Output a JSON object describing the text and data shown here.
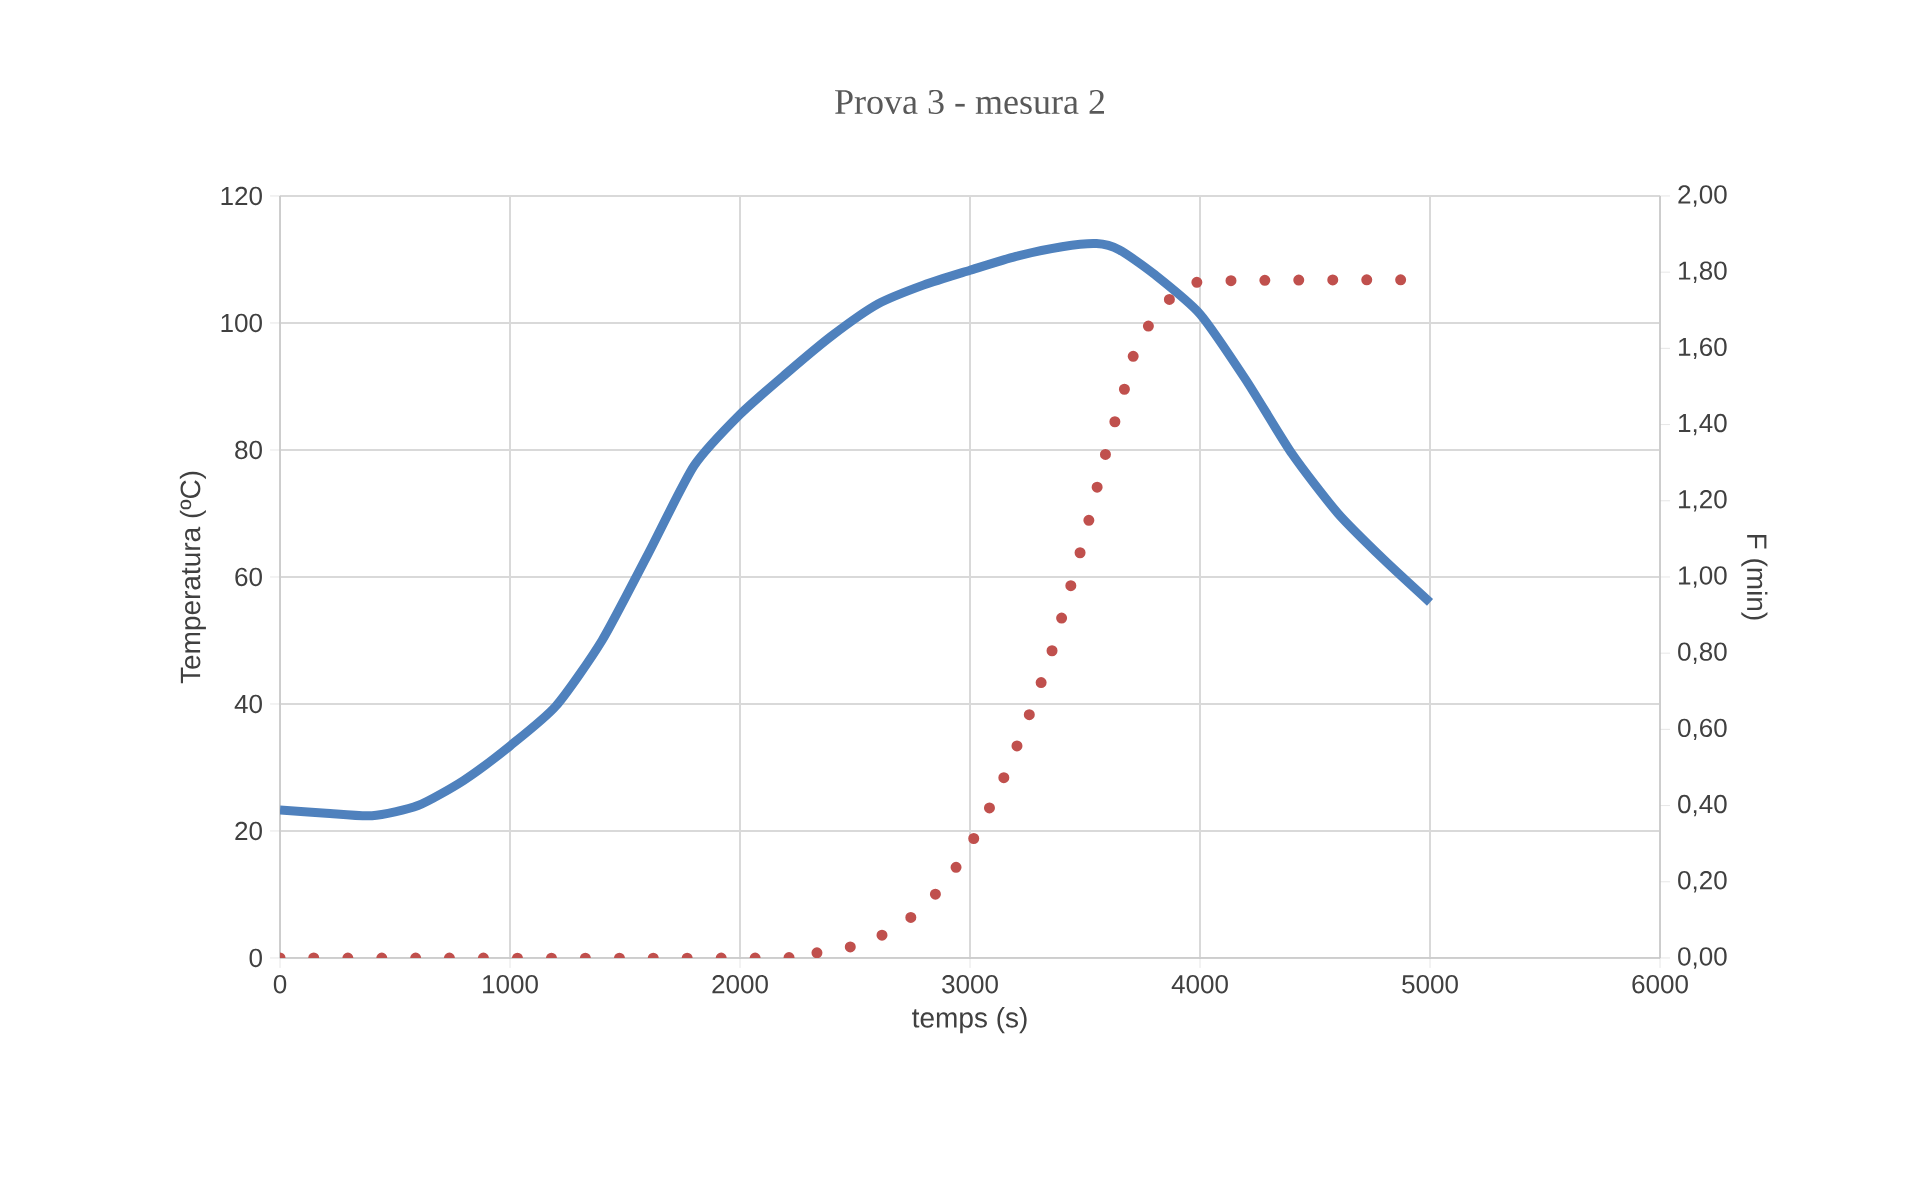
{
  "chart_data": {
    "type": "line",
    "title": "Prova 3 - mesura 2",
    "xlabel": "temps (s)",
    "ylabel": "Temperatura (ºC)",
    "y2label": "F (min)",
    "xlim": [
      0,
      6000
    ],
    "xticks": [
      0,
      1000,
      2000,
      3000,
      4000,
      5000,
      6000
    ],
    "ylim": [
      0,
      120
    ],
    "yticks": [
      0,
      20,
      40,
      60,
      80,
      100,
      120
    ],
    "y2lim": [
      0,
      2
    ],
    "y2ticks": [
      {
        "value": 0,
        "label": "0,00"
      },
      {
        "value": 0.2,
        "label": "0,20"
      },
      {
        "value": 0.4,
        "label": "0,40"
      },
      {
        "value": 0.6,
        "label": "0,60"
      },
      {
        "value": 0.8,
        "label": "0,80"
      },
      {
        "value": 1.0,
        "label": "1,00"
      },
      {
        "value": 1.2,
        "label": "1,20"
      },
      {
        "value": 1.4,
        "label": "1,40"
      },
      {
        "value": 1.6,
        "label": "1,60"
      },
      {
        "value": 1.8,
        "label": "1,80"
      },
      {
        "value": 2.0,
        "label": "2,00"
      }
    ],
    "grid": true,
    "series": [
      {
        "color": "#4f81bd",
        "line_style": "solid",
        "x": [
          0,
          200,
          400,
          600,
          800,
          1000,
          1200,
          1400,
          1600,
          1800,
          2000,
          2200,
          2400,
          2600,
          2800,
          3000,
          3200,
          3400,
          3550,
          3650,
          3800,
          4000,
          4200,
          4400,
          4600,
          4800,
          5000
        ],
        "values": [
          23.3,
          22.8,
          22.4,
          24,
          28,
          33.4,
          39.7,
          50,
          63.6,
          77.5,
          85.6,
          92,
          98,
          103,
          106,
          108.3,
          110.5,
          112,
          112.5,
          111.5,
          107.7,
          101.4,
          91,
          79.4,
          70,
          62.7,
          56
        ]
      },
      {
        "color": "#c0504d",
        "line_style": "dotted",
        "axis": "y2",
        "x": [
          0,
          2120,
          2275,
          2420,
          2565,
          2696,
          2809,
          2906,
          2995,
          3130,
          3246,
          3348,
          3435,
          3513,
          3588,
          3670,
          3710,
          3777,
          3870,
          4010,
          4904
        ],
        "values": [
          0,
          0,
          0.01,
          0.02,
          0.045,
          0.086,
          0.14,
          0.21,
          0.29,
          0.45,
          0.62,
          0.79,
          0.97,
          1.14,
          1.32,
          1.49,
          1.58,
          1.66,
          1.73,
          1.775,
          1.78
        ]
      }
    ]
  }
}
